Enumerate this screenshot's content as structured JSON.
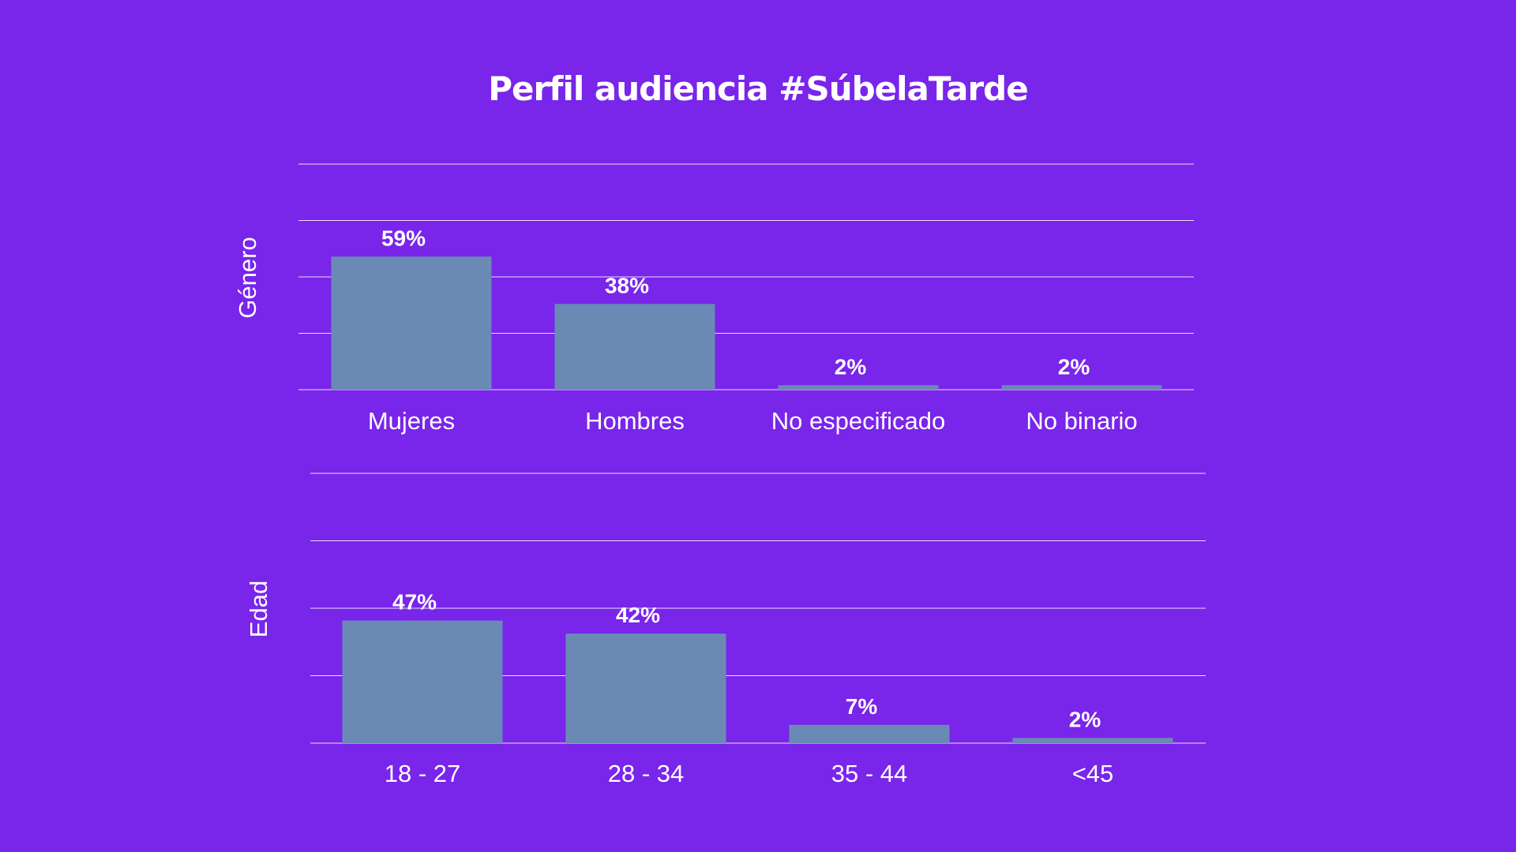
{
  "title": "Perfil audiencia #SúbelaTarde",
  "colors": {
    "background": "#7925ea",
    "bar": "#6a8ab5",
    "text": "#ffffff"
  },
  "chart_data": [
    {
      "type": "bar",
      "ylabel": "Género",
      "categories": [
        "Mujeres",
        "Hombres",
        "No especificado",
        "No binario"
      ],
      "values": [
        59,
        38,
        2,
        2
      ],
      "value_labels": [
        "59%",
        "38%",
        "2%",
        "2%"
      ],
      "ylim": [
        0,
        100
      ],
      "grid": true
    },
    {
      "type": "bar",
      "ylabel": "Edad",
      "categories": [
        "18 - 27",
        "28 - 34",
        "35 - 44",
        "<45"
      ],
      "values": [
        47,
        42,
        7,
        2
      ],
      "value_labels": [
        "47%",
        "42%",
        "7%",
        "2%"
      ],
      "ylim": [
        0,
        100
      ],
      "grid": true
    }
  ]
}
